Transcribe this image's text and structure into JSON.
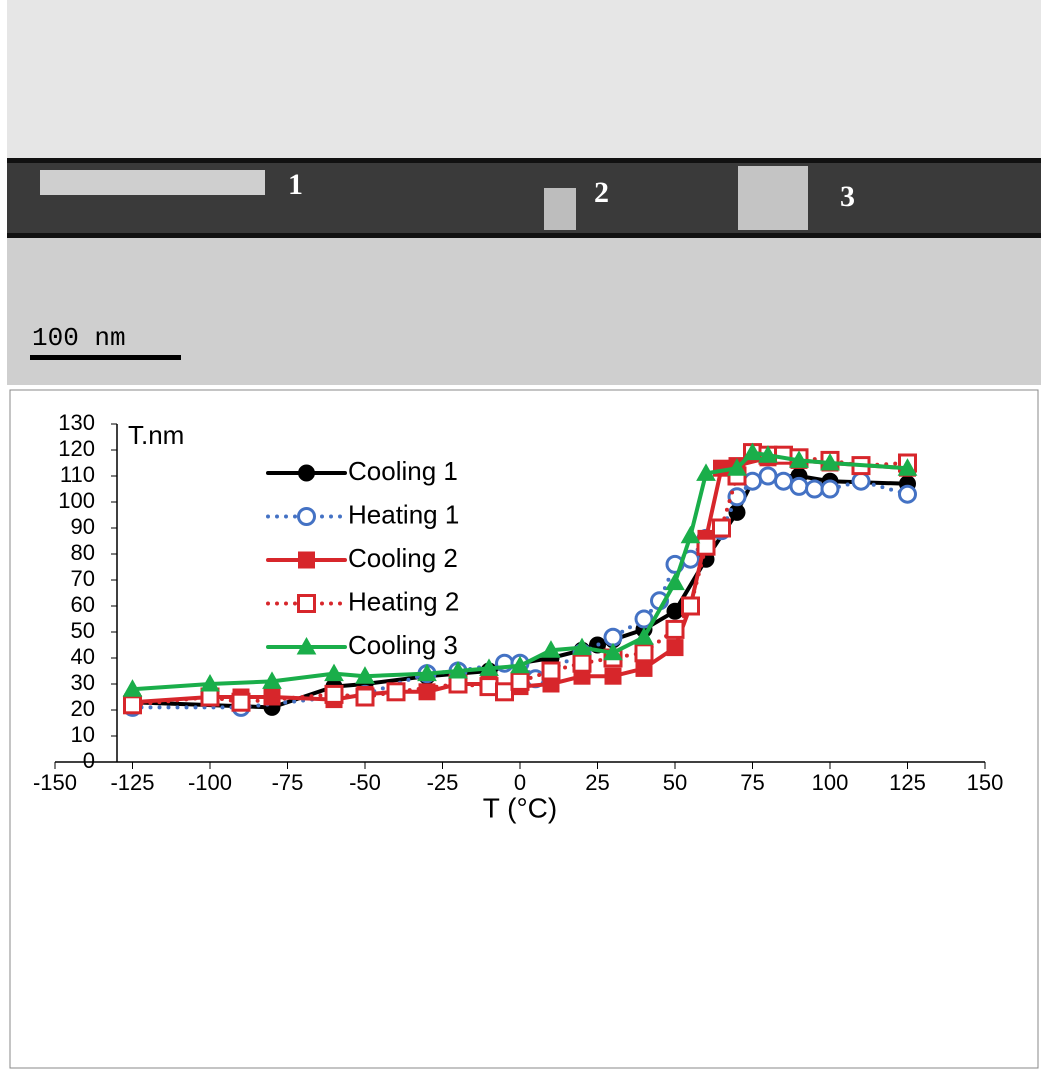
{
  "image": {
    "region_labels": [
      "1",
      "2",
      "3"
    ],
    "scale_bar": "100 nm"
  },
  "chart_data": {
    "type": "line",
    "y_title": "T.nm",
    "x_title": "T (°C)",
    "xlim": [
      -150,
      150
    ],
    "xticks": [
      -150,
      -125,
      -100,
      -75,
      -50,
      -25,
      0,
      25,
      50,
      75,
      100,
      125,
      150
    ],
    "ylim": [
      0,
      130
    ],
    "yticks": [
      0,
      10,
      20,
      30,
      40,
      50,
      60,
      70,
      80,
      90,
      100,
      110,
      120,
      130
    ],
    "y_axis_crosses": -130,
    "legend": "upper-left",
    "series": [
      {
        "name": "Cooling 1",
        "color": "#000000",
        "marker": "circle",
        "filled": true,
        "line_style": "solid",
        "x": [
          -125,
          -80,
          -60,
          -50,
          -30,
          -20,
          -10,
          0,
          10,
          20,
          25,
          30,
          40,
          50,
          60,
          70,
          75,
          80,
          90,
          100,
          125
        ],
        "values": [
          23,
          21,
          29,
          30,
          33,
          34,
          35,
          38,
          40,
          43,
          45,
          47,
          51,
          58,
          78,
          96,
          108,
          110,
          110,
          108,
          107
        ]
      },
      {
        "name": "Heating 1",
        "color": "#4472c4",
        "marker": "circle",
        "filled": false,
        "line_style": "dotted",
        "x": [
          -125,
          -90,
          -60,
          -50,
          -30,
          -20,
          -5,
          0,
          5,
          20,
          30,
          40,
          45,
          50,
          55,
          60,
          65,
          70,
          75,
          80,
          85,
          90,
          95,
          100,
          110,
          125
        ],
        "values": [
          21,
          21,
          25,
          26,
          34,
          35,
          38,
          38,
          32,
          42,
          48,
          55,
          62,
          76,
          78,
          86,
          89,
          102,
          108,
          110,
          108,
          106,
          105,
          105,
          108,
          103
        ]
      },
      {
        "name": "Cooling 2",
        "color": "#d7262b",
        "marker": "square",
        "filled": true,
        "line_style": "solid",
        "x": [
          -125,
          -100,
          -90,
          -80,
          -60,
          -50,
          -40,
          -30,
          -20,
          -10,
          0,
          10,
          20,
          30,
          40,
          50,
          55,
          60,
          65,
          70,
          80,
          90,
          100,
          125
        ],
        "values": [
          23,
          25,
          25,
          25,
          24,
          26,
          27,
          27,
          30,
          30,
          29,
          30,
          33,
          33,
          36,
          44,
          60,
          86,
          113,
          114,
          117,
          116,
          115,
          113
        ]
      },
      {
        "name": "Heating 2",
        "color": "#d7262b",
        "marker": "square",
        "filled": false,
        "line_style": "dotted",
        "x": [
          -125,
          -100,
          -90,
          -60,
          -50,
          -40,
          -20,
          -10,
          -5,
          0,
          10,
          20,
          30,
          40,
          50,
          55,
          60,
          65,
          70,
          75,
          80,
          85,
          90,
          100,
          110,
          125
        ],
        "values": [
          22,
          25,
          23,
          26,
          25,
          27,
          30,
          29,
          27,
          31,
          35,
          38,
          40,
          42,
          51,
          60,
          83,
          90,
          110,
          119,
          118,
          118,
          117,
          116,
          114,
          115
        ]
      },
      {
        "name": "Cooling 3",
        "color": "#1aae4a",
        "marker": "triangle",
        "filled": true,
        "line_style": "solid",
        "x": [
          -125,
          -100,
          -80,
          -60,
          -50,
          -30,
          -20,
          -10,
          0,
          10,
          20,
          30,
          40,
          50,
          55,
          60,
          70,
          75,
          80,
          90,
          100,
          125
        ],
        "values": [
          28,
          30,
          31,
          34,
          33,
          34,
          35,
          36,
          37,
          43,
          44,
          42,
          48,
          69,
          87,
          111,
          113,
          119,
          118,
          116,
          115,
          113
        ]
      }
    ]
  }
}
